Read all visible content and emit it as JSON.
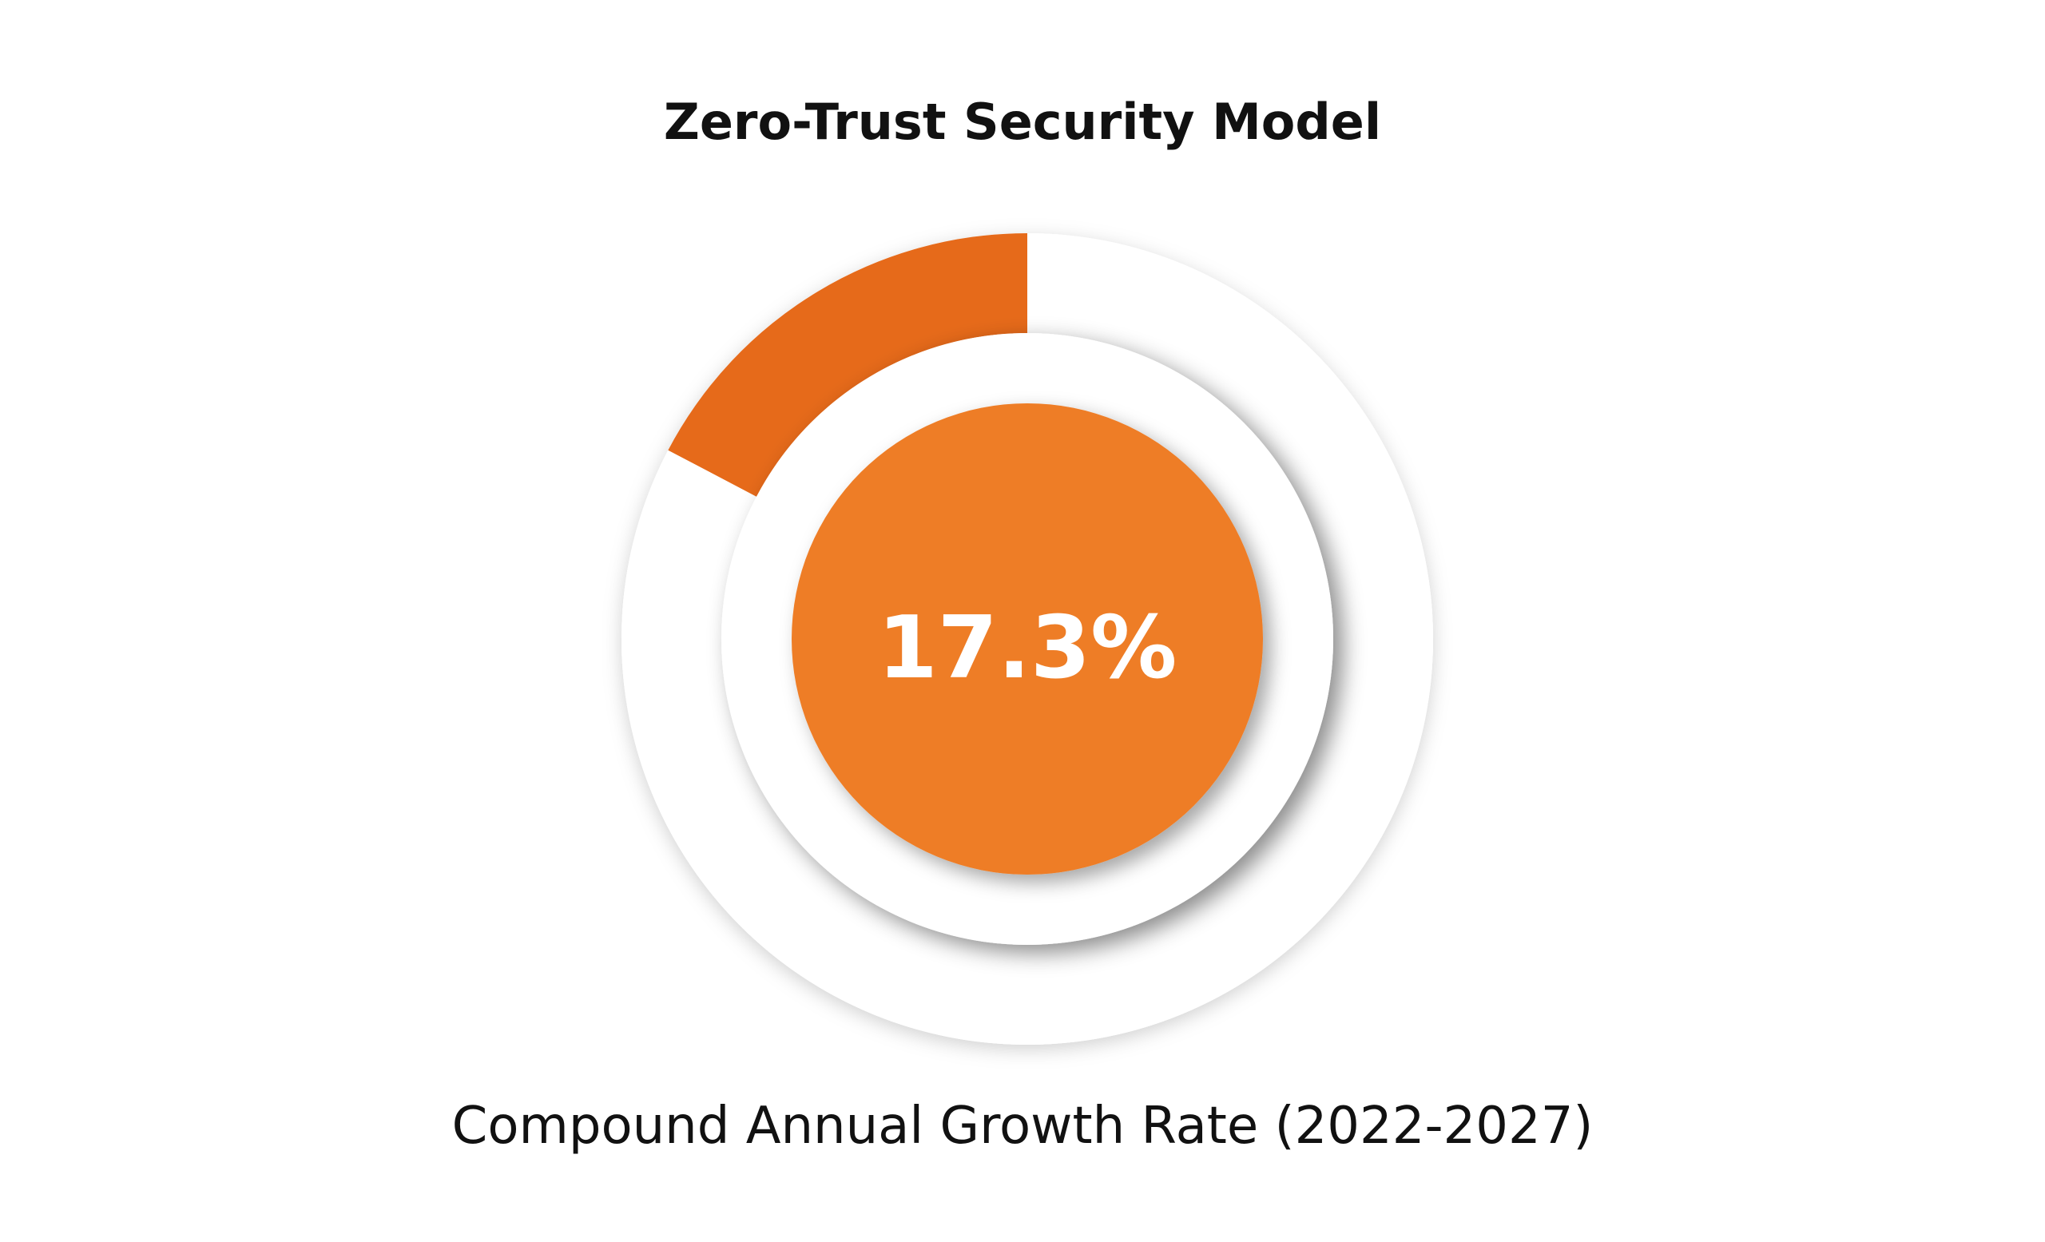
{
  "title": "Zero-Trust Security Model",
  "subtitle": "Compound Annual Growth Rate (2022-2027)",
  "center_label": "17.3%",
  "colors": {
    "highlight": "#e66a1a",
    "center_fill": "#ee7d26",
    "ring": "#ffffff",
    "text": "#111111",
    "center_text": "#ffffff"
  },
  "chart_data": {
    "type": "pie",
    "series": [
      {
        "values": [
          17.3,
          82.7
        ]
      }
    ],
    "center_label": "17.3%",
    "subtitle": "Compound Annual Growth Rate (2022-2027)",
    "title": "Zero-Trust Security Model"
  }
}
